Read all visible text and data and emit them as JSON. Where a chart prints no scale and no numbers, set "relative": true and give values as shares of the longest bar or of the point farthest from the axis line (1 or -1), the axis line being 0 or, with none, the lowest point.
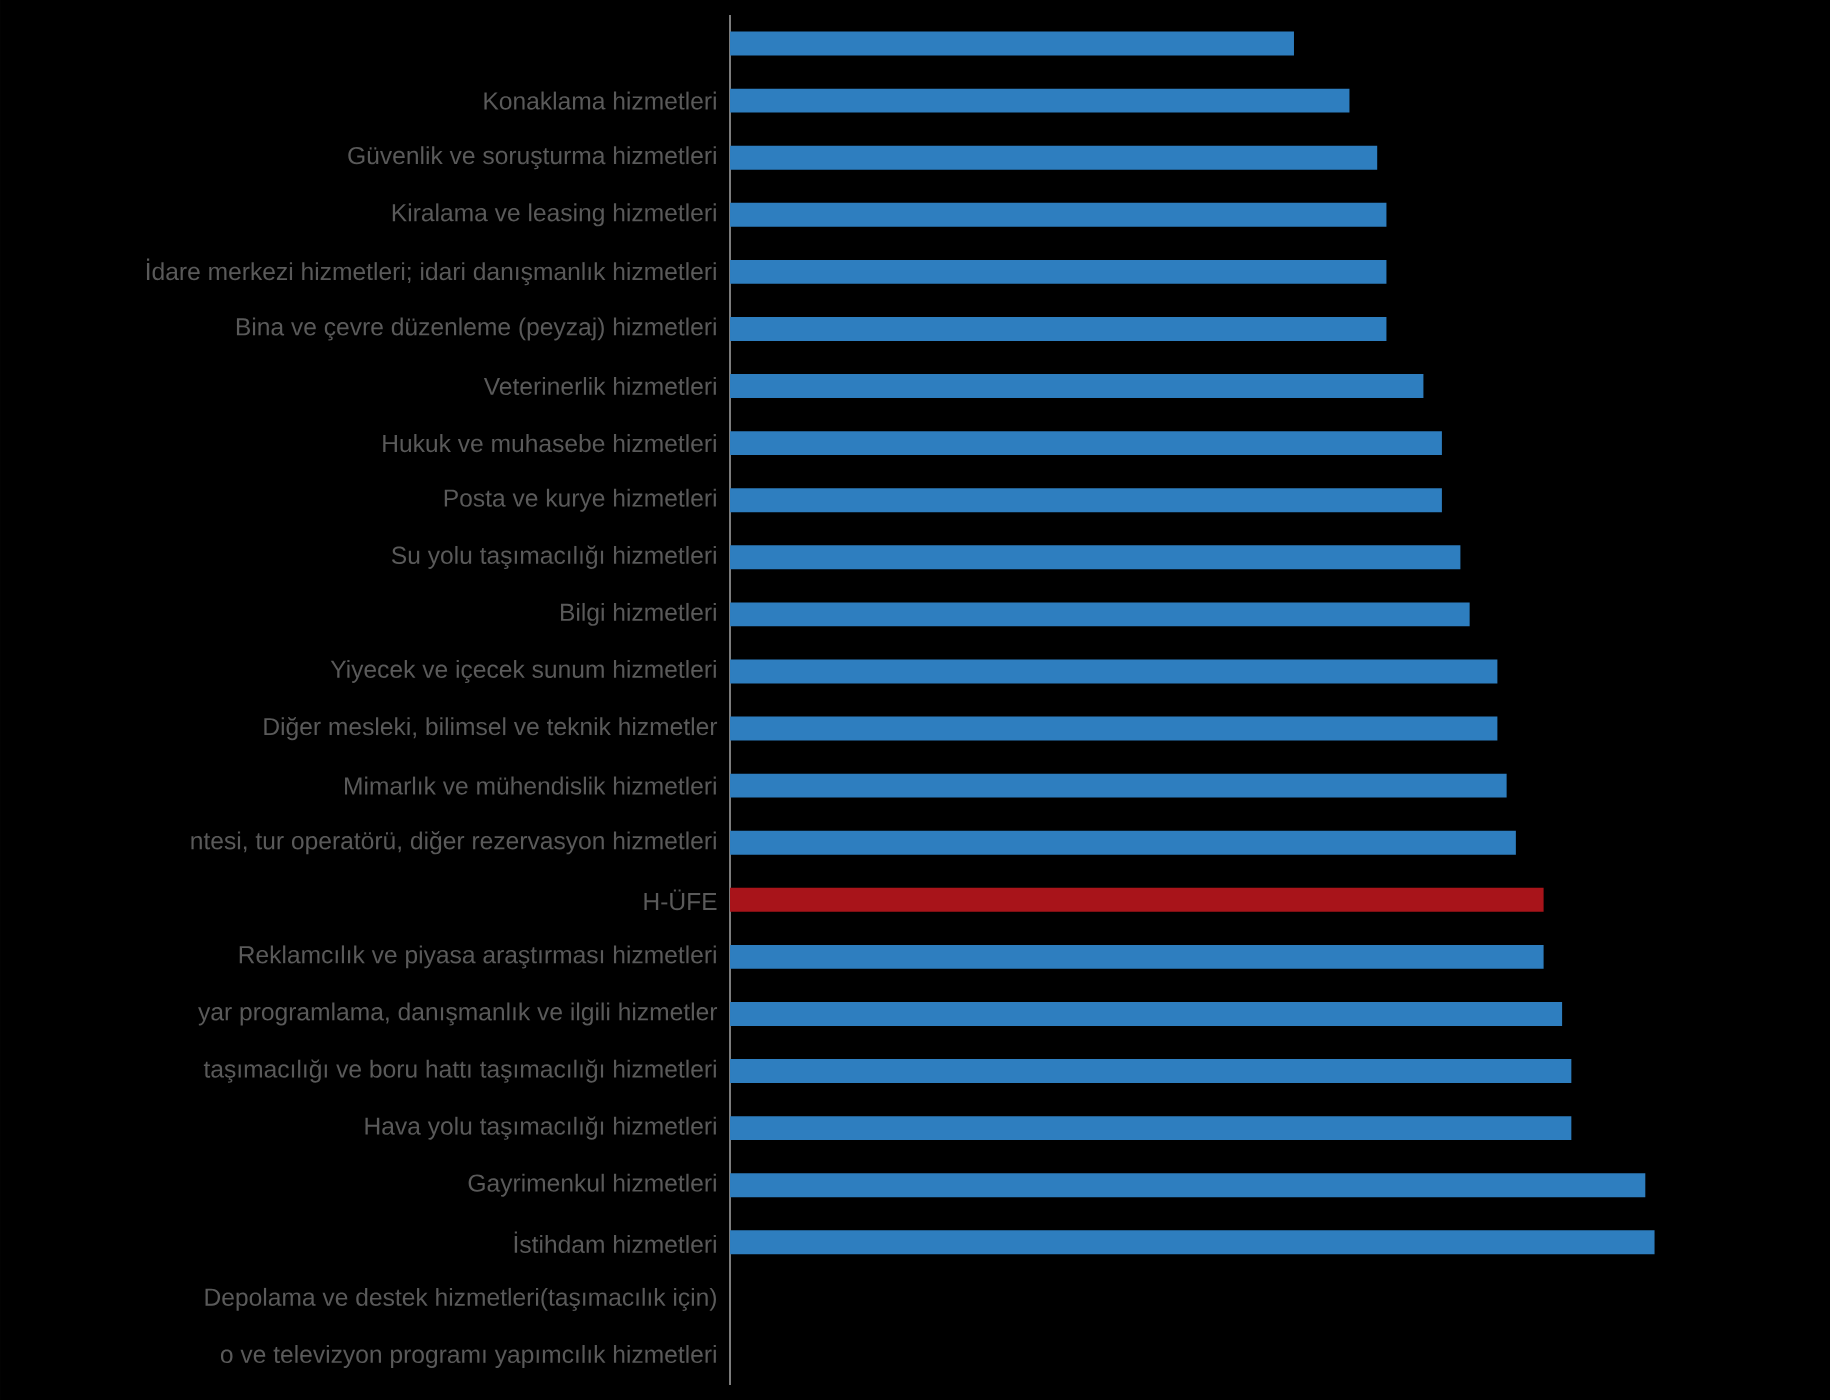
{
  "chart_data": {
    "type": "bar",
    "orientation": "horizontal",
    "relative": true,
    "categories": [
      null,
      "Konaklama hizmetleri",
      "Güvenlik ve soruşturma hizmetleri",
      "Kiralama ve leasing hizmetleri",
      "İdare merkezi hizmetleri; idari danışmanlık hizmetleri",
      "Bina ve çevre düzenleme (peyzaj) hizmetleri",
      "Veterinerlik hizmetleri",
      "Hukuk ve muhasebe hizmetleri",
      "Posta ve kurye hizmetleri",
      "Su yolu taşımacılığı hizmetleri",
      "Bilgi hizmetleri",
      "Yiyecek ve içecek sunum hizmetleri",
      "Diğer mesleki, bilimsel ve teknik hizmetler",
      "Mimarlık ve mühendislik hizmetleri",
      "ntesi, tur operatörü, diğer rezervasyon hizmetleri",
      "H-ÜFE",
      "Reklamcılık ve piyasa araştırması hizmetleri",
      "yar programlama, danışmanlık ve ilgili hizmetler",
      "taşımacılığı ve boru hattı taşımacılığı hizmetleri",
      "Hava yolu taşımacılığı hizmetleri",
      "Gayrimenkul hizmetleri",
      "İstihdam hizmetleri",
      "Depolama ve destek hizmetleri(taşımacılık için)",
      "o ve televizyon programı yapımcılık hizmetleri"
    ],
    "values": [
      0.61,
      0.67,
      0.7,
      0.71,
      0.71,
      0.71,
      0.75,
      0.77,
      0.77,
      0.79,
      0.8,
      0.83,
      0.83,
      0.84,
      0.85,
      0.88,
      0.88,
      0.9,
      0.91,
      0.91,
      0.99,
      1,
      null,
      null
    ],
    "colors": [
      "#2e7ebf",
      "#2e7ebf",
      "#2e7ebf",
      "#2e7ebf",
      "#2e7ebf",
      "#2e7ebf",
      "#2e7ebf",
      "#2e7ebf",
      "#2e7ebf",
      "#2e7ebf",
      "#2e7ebf",
      "#2e7ebf",
      "#2e7ebf",
      "#2e7ebf",
      "#2e7ebf",
      "#a8141a",
      "#2e7ebf",
      "#2e7ebf",
      "#2e7ebf",
      "#2e7ebf",
      "#2e7ebf",
      "#2e7ebf",
      null,
      null
    ]
  }
}
